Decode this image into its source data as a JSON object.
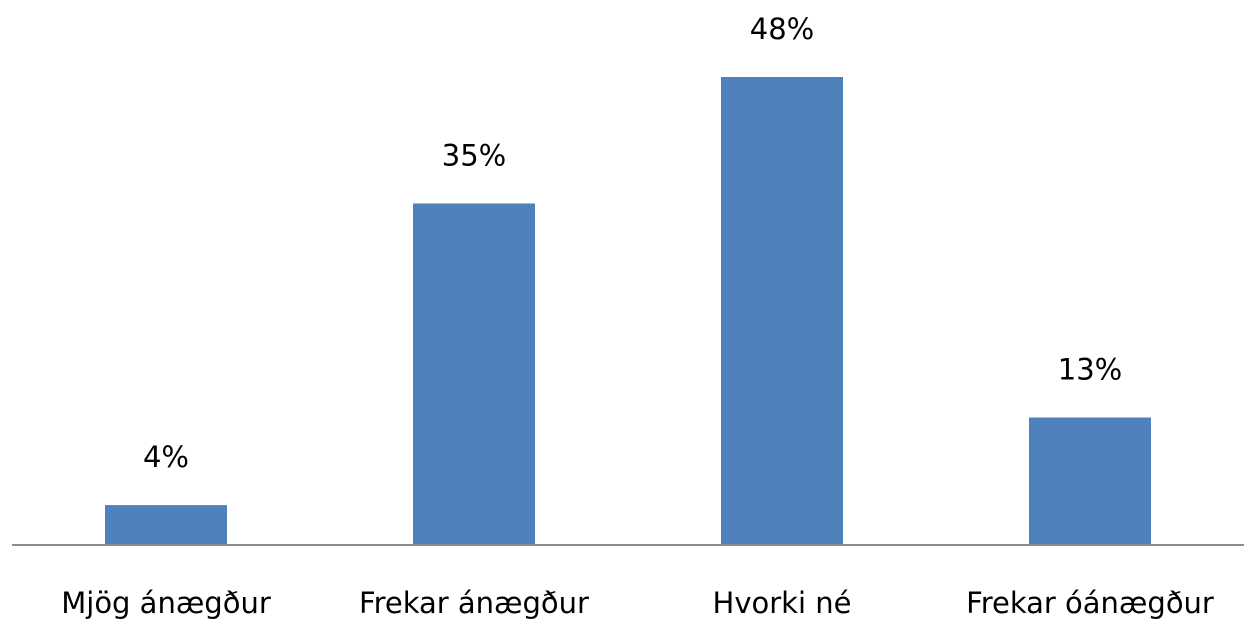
{
  "chart_data": {
    "type": "bar",
    "categories": [
      "Mjög ánægður",
      "Frekar ánægður",
      "Hvorki né",
      "Frekar óánægður"
    ],
    "values": [
      4,
      35,
      48,
      13
    ],
    "value_labels": [
      "4%",
      "35%",
      "48%",
      "13%"
    ],
    "color": "#4f81bd"
  }
}
